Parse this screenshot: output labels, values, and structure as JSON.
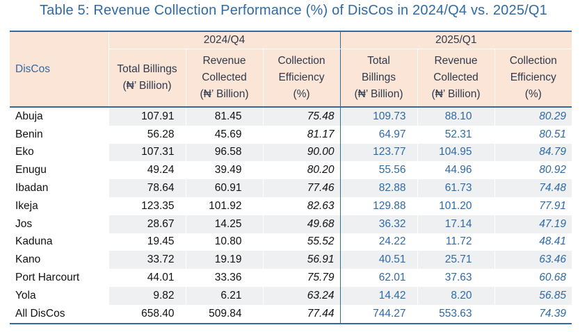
{
  "title": "Table 5: Revenue Collection Performance (%) of DisCos in 2024/Q4 vs. 2025/Q1",
  "header": {
    "disco_label": "DisCos",
    "period_1": "2024/Q4",
    "period_2": "2025/Q1",
    "p1_cols": [
      [
        "Total Billings",
        "(₦’ Billion)"
      ],
      [
        "Revenue",
        "Collected",
        "(₦’ Billion)"
      ],
      [
        "Collection",
        "Efficiency",
        "(%)"
      ]
    ],
    "p2_cols": [
      [
        "Total",
        "Billings",
        "(₦’ Billion)"
      ],
      [
        "Revenue",
        "Collected",
        "(₦’ Billion)"
      ],
      [
        "Collection",
        "Efficiency",
        "(%)"
      ]
    ]
  },
  "rows": [
    [
      "Abuja",
      "107.91",
      "81.45",
      "75.48",
      "109.73",
      "88.10",
      "80.29"
    ],
    [
      "Benin",
      "56.28",
      "45.69",
      "81.17",
      "64.97",
      "52.31",
      "80.51"
    ],
    [
      "Eko",
      "107.31",
      "96.58",
      "90.00",
      "123.77",
      "104.95",
      "84.79"
    ],
    [
      "Enugu",
      "49.24",
      "39.49",
      "80.20",
      "55.56",
      "44.96",
      "80.92"
    ],
    [
      "Ibadan",
      "78.64",
      "60.91",
      "77.46",
      "82.88",
      "61.73",
      "74.48"
    ],
    [
      "Ikeja",
      "123.35",
      "101.92",
      "82.63",
      "129.88",
      "101.20",
      "77.91"
    ],
    [
      "Jos",
      "28.67",
      "14.25",
      "49.68",
      "36.32",
      "17.14",
      "47.19"
    ],
    [
      "Kaduna",
      "19.45",
      "10.80",
      "55.52",
      "24.22",
      "11.72",
      "48.41"
    ],
    [
      "Kano",
      "33.72",
      "19.19",
      "56.91",
      "40.51",
      "25.71",
      "63.46"
    ],
    [
      "Port Harcourt",
      "44.01",
      "33.36",
      "75.79",
      "62.01",
      "37.63",
      "60.68"
    ],
    [
      "Yola",
      "9.82",
      "6.21",
      "63.24",
      "14.42",
      "8.20",
      "56.85"
    ],
    [
      "All DisCos",
      "658.40",
      "509.84",
      "77.44",
      "744.27",
      "553.63",
      "74.39"
    ]
  ],
  "colors": {
    "accent": "#2e6aa6",
    "header_bg": "#fbe5d6",
    "stripe_bg": "#eef0f2"
  }
}
